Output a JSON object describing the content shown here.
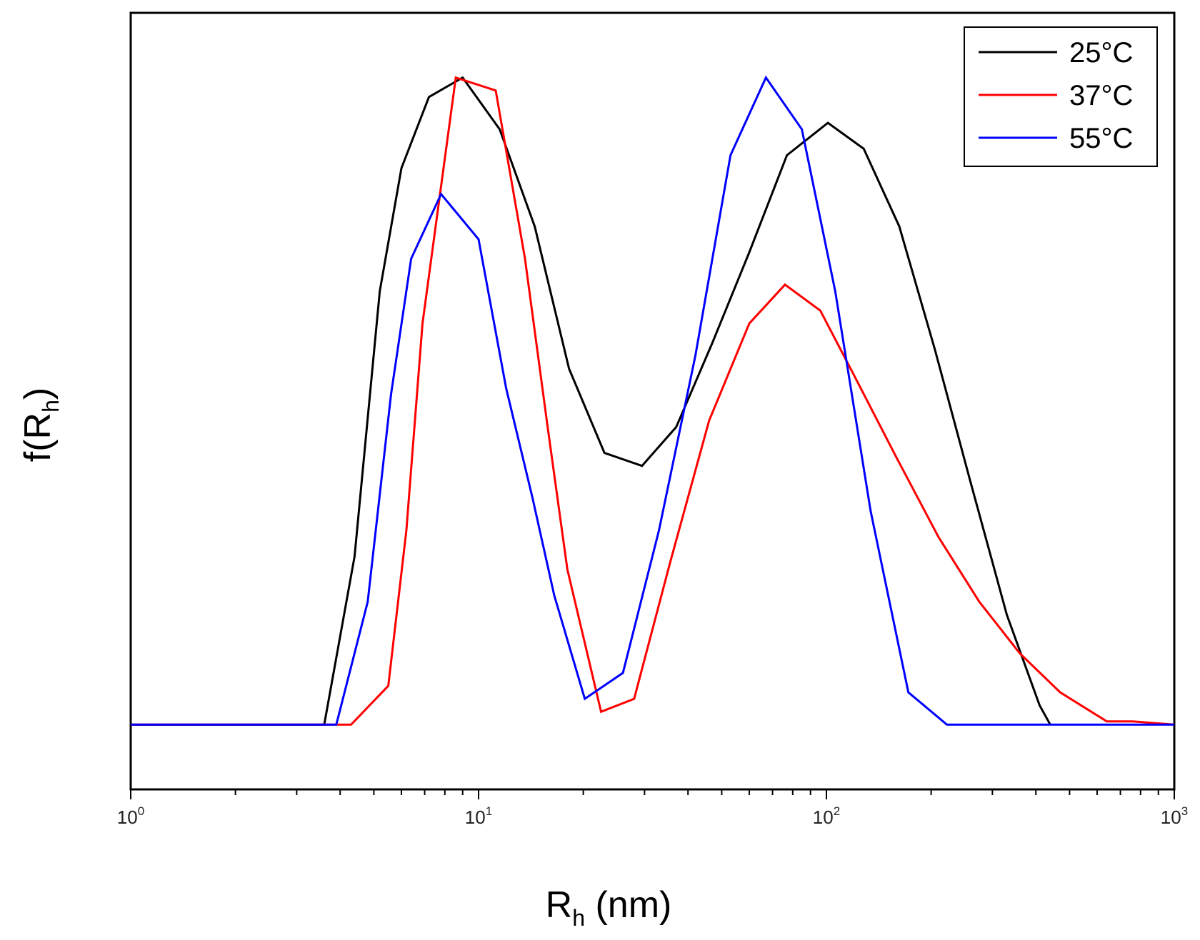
{
  "chart_data": {
    "type": "line",
    "x_scale": "log",
    "xlim": [
      1,
      1000
    ],
    "ylim": [
      -0.1,
      1.1
    ],
    "grid": false,
    "legend_position": "top-right",
    "xlabel": {
      "main": "R",
      "sub": "h",
      "rest": " (nm)"
    },
    "ylabel": {
      "main": "f(R",
      "sub": "h",
      "rest": ")"
    },
    "x_ticks": [
      {
        "value": 1,
        "base": "10",
        "exp": "0"
      },
      {
        "value": 10,
        "base": "10",
        "exp": "1"
      },
      {
        "value": 100,
        "base": "10",
        "exp": "2"
      },
      {
        "value": 1000,
        "base": "10",
        "exp": "3"
      }
    ],
    "series": [
      {
        "name": "25°C",
        "color": "#000000",
        "points": [
          [
            1,
            0
          ],
          [
            3.6,
            0
          ],
          [
            4.4,
            0.26
          ],
          [
            5.2,
            0.67
          ],
          [
            6.0,
            0.86
          ],
          [
            7.2,
            0.97
          ],
          [
            9.0,
            1.0
          ],
          [
            11.5,
            0.92
          ],
          [
            14.5,
            0.77
          ],
          [
            18.2,
            0.55
          ],
          [
            23.0,
            0.42
          ],
          [
            29.5,
            0.4
          ],
          [
            37.0,
            0.46
          ],
          [
            47.0,
            0.59
          ],
          [
            60.0,
            0.73
          ],
          [
            77.0,
            0.88
          ],
          [
            101.0,
            0.93
          ],
          [
            128.0,
            0.89
          ],
          [
            162.0,
            0.77
          ],
          [
            205.0,
            0.58
          ],
          [
            258.0,
            0.38
          ],
          [
            330.0,
            0.17
          ],
          [
            410.0,
            0.03
          ],
          [
            440.0,
            0
          ]
        ]
      },
      {
        "name": "37°C",
        "color": "#ff0000",
        "points": [
          [
            1,
            0
          ],
          [
            4.3,
            0
          ],
          [
            5.5,
            0.06
          ],
          [
            6.2,
            0.3
          ],
          [
            6.9,
            0.62
          ],
          [
            8.6,
            1.0
          ],
          [
            11.2,
            0.98
          ],
          [
            13.6,
            0.72
          ],
          [
            15.8,
            0.46
          ],
          [
            18.0,
            0.24
          ],
          [
            22.5,
            0.02
          ],
          [
            28.0,
            0.04
          ],
          [
            35.5,
            0.25
          ],
          [
            46.0,
            0.47
          ],
          [
            60.0,
            0.62
          ],
          [
            76.0,
            0.68
          ],
          [
            96.0,
            0.64
          ],
          [
            120.0,
            0.54
          ],
          [
            160.0,
            0.41
          ],
          [
            210.0,
            0.29
          ],
          [
            275.0,
            0.19
          ],
          [
            360.0,
            0.11
          ],
          [
            470.0,
            0.05
          ],
          [
            640.0,
            0.005
          ],
          [
            760.0,
            0.005
          ],
          [
            1000.0,
            0.0
          ]
        ]
      },
      {
        "name": "55°C",
        "color": "#0000ff",
        "points": [
          [
            1,
            0
          ],
          [
            3.9,
            0
          ],
          [
            4.8,
            0.19
          ],
          [
            5.6,
            0.51
          ],
          [
            6.4,
            0.72
          ],
          [
            7.8,
            0.82
          ],
          [
            10.0,
            0.75
          ],
          [
            12.0,
            0.52
          ],
          [
            14.3,
            0.35
          ],
          [
            16.5,
            0.2
          ],
          [
            20.2,
            0.04
          ],
          [
            26.0,
            0.08
          ],
          [
            33.0,
            0.3
          ],
          [
            42.0,
            0.57
          ],
          [
            53.0,
            0.88
          ],
          [
            67.0,
            1.0
          ],
          [
            85.0,
            0.92
          ],
          [
            106.0,
            0.67
          ],
          [
            134.0,
            0.33
          ],
          [
            172.0,
            0.05
          ],
          [
            222.0,
            0.0
          ],
          [
            1000.0,
            0.0
          ]
        ]
      }
    ]
  }
}
